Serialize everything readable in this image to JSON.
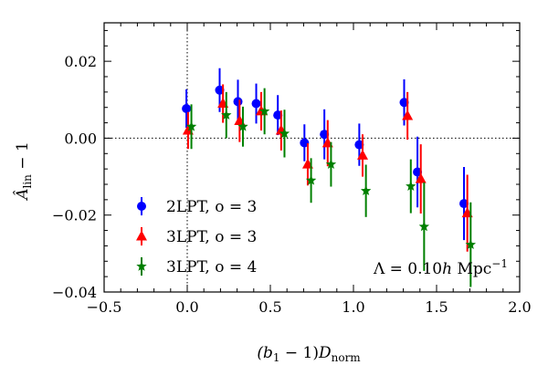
{
  "chart_data": {
    "type": "scatter",
    "xlabel": "(b₁ − 1)D_norm",
    "ylabel": "Â_lin − 1",
    "xlim": [
      -0.5,
      2.0
    ],
    "ylim": [
      -0.04,
      0.03
    ],
    "xticks": [
      -0.5,
      0.0,
      0.5,
      1.0,
      1.5,
      2.0
    ],
    "yticks": [
      -0.04,
      -0.02,
      0.0,
      0.02
    ],
    "xtick_labels": [
      "−0.5",
      "0.0",
      "0.5",
      "1.0",
      "1.5",
      "2.0"
    ],
    "ytick_labels": [
      "−0.04",
      "−0.02",
      "0.00",
      "0.02"
    ],
    "reference_lines": {
      "horizontal_y": 0.0,
      "vertical_x": 0.0,
      "style": "dotted"
    },
    "annotation": "Λ = 0.10h Mpc⁻¹",
    "legend": {
      "placement": "lower-left"
    },
    "series": [
      {
        "name": "2LPT, o = 3",
        "color": "#0000ff",
        "marker": "circle",
        "x": [
          -0.005,
          0.195,
          0.305,
          0.415,
          0.545,
          0.705,
          0.825,
          1.035,
          1.305,
          1.385,
          1.665
        ],
        "y": [
          0.0077,
          0.0125,
          0.0095,
          0.009,
          0.006,
          -0.0012,
          0.001,
          -0.0017,
          0.0093,
          -0.0088,
          -0.017
        ],
        "err": [
          0.005,
          0.0057,
          0.0057,
          0.0052,
          0.0052,
          0.0048,
          0.0065,
          0.0055,
          0.006,
          0.0092,
          0.0095
        ]
      },
      {
        "name": "3LPT, o = 3",
        "color": "#ff0000",
        "marker": "triangle",
        "x": [
          0.005,
          0.215,
          0.315,
          0.445,
          0.565,
          0.725,
          0.845,
          1.055,
          1.325,
          1.405,
          1.685
        ],
        "y": [
          0.002,
          0.009,
          0.0045,
          0.007,
          0.002,
          -0.0068,
          -0.0013,
          -0.0045,
          0.0058,
          -0.0106,
          -0.0195
        ],
        "err": [
          0.0048,
          0.005,
          0.0055,
          0.005,
          0.0052,
          0.0055,
          0.006,
          0.0055,
          0.0062,
          0.009,
          0.01
        ]
      },
      {
        "name": "3LPT, o = 4",
        "color": "#008000",
        "marker": "star",
        "x": [
          0.025,
          0.235,
          0.335,
          0.465,
          0.585,
          0.745,
          0.865,
          1.075,
          1.345,
          1.425,
          1.705
        ],
        "y": [
          0.003,
          0.006,
          0.003,
          0.007,
          0.0012,
          -0.011,
          -0.0068,
          -0.0137,
          -0.0125,
          -0.023,
          -0.0277
        ],
        "err": [
          0.0058,
          0.006,
          0.0052,
          0.006,
          0.0062,
          0.0058,
          0.0058,
          0.0068,
          0.007,
          0.0115,
          0.011
        ]
      }
    ]
  }
}
